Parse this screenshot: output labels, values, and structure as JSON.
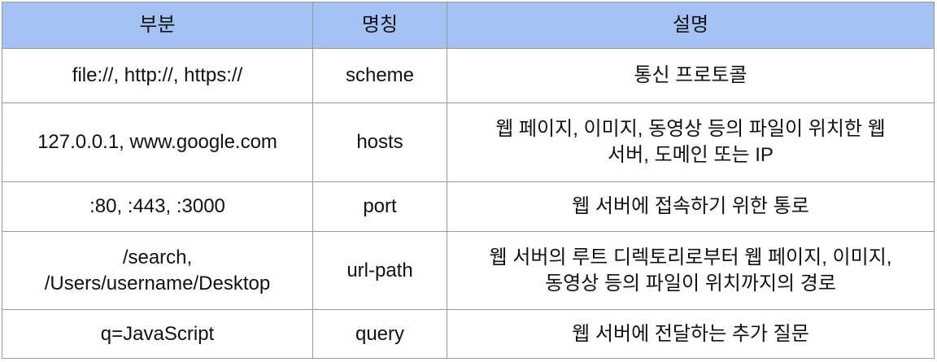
{
  "table": {
    "headers": [
      "부분",
      "명칭",
      "설명"
    ],
    "rows": [
      {
        "part": "file://, http://, https://",
        "name": "scheme",
        "desc_lines": [
          "통신 프로토콜"
        ]
      },
      {
        "part": "127.0.0.1, www.google.com",
        "name": "hosts",
        "desc_lines": [
          "웹 페이지, 이미지, 동영상 등의 파일이 위치한 웹",
          "서버, 도메인 또는 IP"
        ]
      },
      {
        "part": ":80, :443, :3000",
        "name": "port",
        "desc_lines": [
          "웹 서버에 접속하기 위한 통로"
        ]
      },
      {
        "part_lines": [
          "/search,",
          "/Users/username/Desktop"
        ],
        "name": "url-path",
        "desc_lines": [
          "웹 서버의 루트 디렉토리로부터 웹 페이지, 이미지,",
          "동영상 등의 파일이 위치까지의 경로"
        ]
      },
      {
        "part": "q=JavaScript",
        "name": "query",
        "desc_lines": [
          "웹 서버에 전달하는 추가 질문"
        ]
      }
    ]
  },
  "colors": {
    "header_bg": "#a4c2f4",
    "border": "#999999",
    "text": "#111111"
  }
}
